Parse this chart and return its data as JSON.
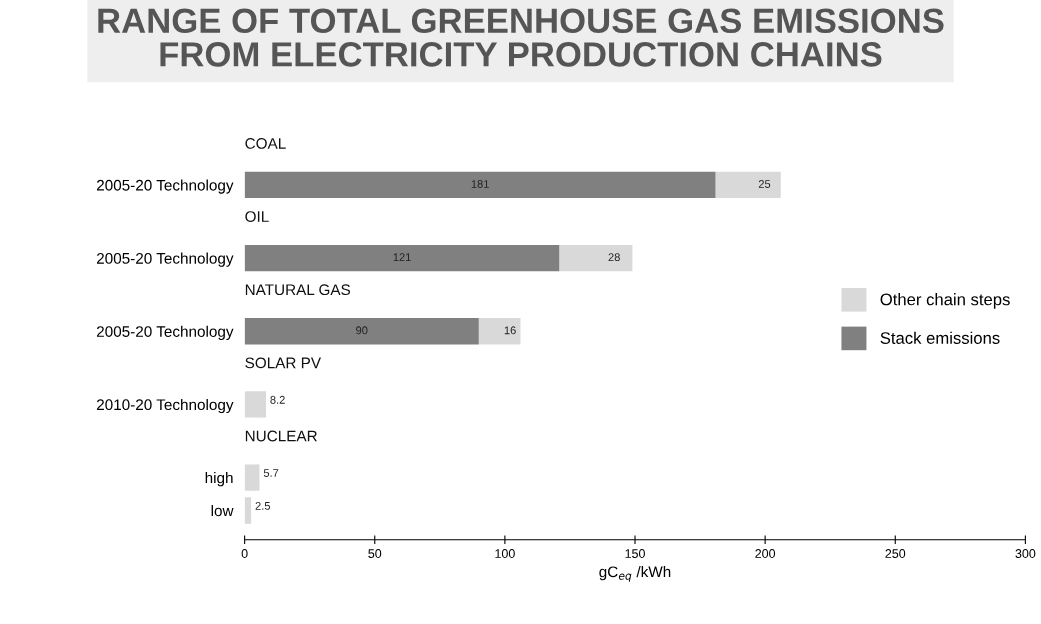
{
  "chart_data": {
    "type": "bar",
    "orientation": "horizontal",
    "stacked": true,
    "title": "RANGE OF TOTAL GREENHOUSE GAS EMISSIONS\nFROM ELECTRICITY PRODUCTION CHAINS",
    "xlabel": "gC$_{eq}$ /kWh",
    "categories": [
      "2005-20 Technology",
      "2005-20 Technology",
      "2005-20 Technology",
      "2010-20 Technology",
      "high",
      "low"
    ],
    "annotations": [
      "COAL",
      "OIL",
      "NATURAL GAS",
      "SOLAR PV",
      "NUCLEAR"
    ],
    "series": [
      {
        "name": "Stack emissions",
        "color": "#808080",
        "values": [
          181,
          121,
          90,
          null,
          null,
          null
        ]
      },
      {
        "name": "Other chain steps",
        "color": "#d9d9d9",
        "values": [
          25,
          28,
          16,
          8.2,
          5.7,
          2.5
        ]
      }
    ],
    "data_labels": true,
    "xlim": [
      0,
      300
    ],
    "xticks": [
      0,
      50,
      100,
      150,
      200,
      250,
      300
    ],
    "grid": false,
    "legend": "right"
  }
}
